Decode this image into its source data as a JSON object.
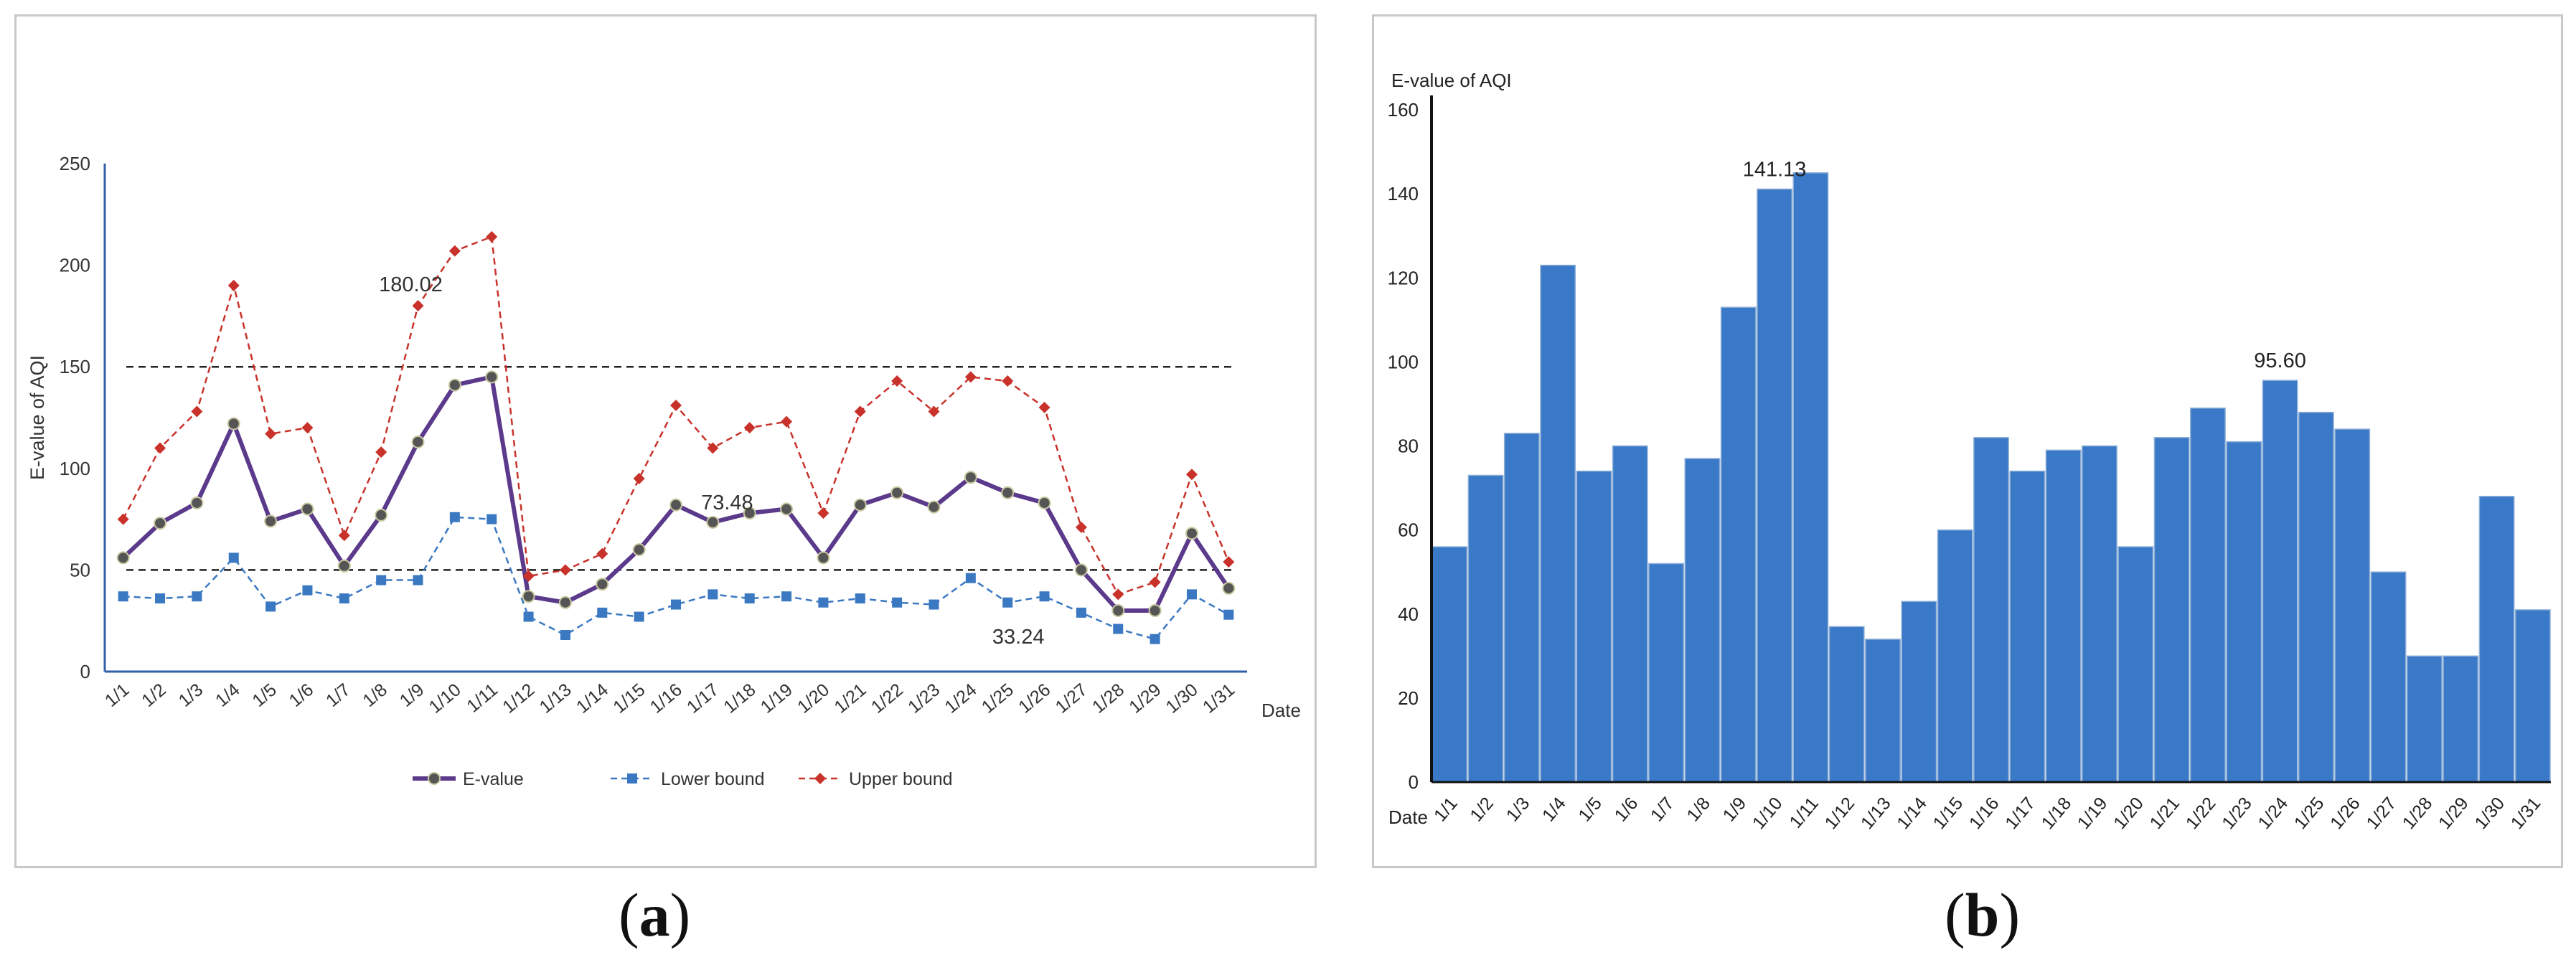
{
  "chart_data": [
    {
      "type": "line",
      "panel_label": "a",
      "title": "",
      "xlabel": "Date",
      "ylabel": "E-value of AQI",
      "ylim": [
        0,
        250
      ],
      "yticks": [
        "0",
        "50",
        "100",
        "150",
        "200",
        "250"
      ],
      "categories": [
        "1/1",
        "1/2",
        "1/3",
        "1/4",
        "1/5",
        "1/6",
        "1/7",
        "1/8",
        "1/9",
        "1/10",
        "1/11",
        "1/12",
        "1/13",
        "1/14",
        "1/15",
        "1/16",
        "1/17",
        "1/18",
        "1/19",
        "1/20",
        "1/21",
        "1/22",
        "1/23",
        "1/24",
        "1/25",
        "1/26",
        "1/27",
        "1/28",
        "1/29",
        "1/30",
        "1/31"
      ],
      "series": [
        {
          "name": "E-value",
          "color": "#5b3a8c",
          "values": [
            56,
            73,
            83,
            122,
            74,
            80,
            52,
            77,
            113,
            141,
            145,
            37,
            34,
            43,
            60,
            82,
            73.48,
            78,
            80,
            56,
            82,
            88,
            81,
            95.6,
            88,
            83,
            50,
            30,
            30,
            68,
            41
          ]
        },
        {
          "name": "Lower bound",
          "color": "#3a78c2",
          "values": [
            37,
            36,
            37,
            56,
            32,
            40,
            36,
            45,
            45,
            76,
            75,
            27,
            18,
            29,
            27,
            33,
            38,
            36,
            37,
            34,
            36,
            34,
            33,
            46,
            34,
            37,
            29,
            21,
            16,
            38,
            28
          ]
        },
        {
          "name": "Upper bound",
          "color": "#c8322a",
          "values": [
            75,
            110,
            128,
            190,
            117,
            120,
            67,
            108,
            180.02,
            207,
            214,
            47,
            50,
            58,
            95,
            131,
            110,
            120,
            123,
            78,
            128,
            143,
            128,
            145,
            143,
            130,
            71,
            38,
            44,
            97,
            54
          ]
        }
      ],
      "reference_lines": [
        150,
        50
      ],
      "annotations": [
        "180.02",
        "73.48",
        "33.24"
      ],
      "legend": {
        "position": "bottom",
        "items": [
          "E-value",
          "Lower bound",
          "Upper bound"
        ]
      }
    },
    {
      "type": "bar",
      "panel_label": "b",
      "title": "",
      "xlabel": "Date",
      "ylabel": "E-value of AQI",
      "ylim": [
        0,
        160
      ],
      "yticks": [
        "0",
        "20",
        "40",
        "60",
        "80",
        "100",
        "120",
        "140",
        "160"
      ],
      "categories": [
        "1/1",
        "1/2",
        "1/3",
        "1/4",
        "1/5",
        "1/6",
        "1/7",
        "1/8",
        "1/9",
        "1/10",
        "1/11",
        "1/12",
        "1/13",
        "1/14",
        "1/15",
        "1/16",
        "1/17",
        "1/18",
        "1/19",
        "1/20",
        "1/21",
        "1/22",
        "1/23",
        "1/24",
        "1/25",
        "1/26",
        "1/27",
        "1/28",
        "1/29",
        "1/30",
        "1/31"
      ],
      "values": [
        56,
        73,
        83,
        123,
        74,
        80,
        52,
        77,
        113,
        141.13,
        145,
        37,
        34,
        43,
        60,
        82,
        74,
        79,
        80,
        56,
        82,
        89,
        81,
        95.6,
        88,
        84,
        50,
        30,
        30,
        68,
        41
      ],
      "color": "#3a78c8",
      "annotations": [
        "141.13",
        "95.60"
      ]
    }
  ],
  "captions": {
    "a": "(a)",
    "b": "(b)"
  },
  "caption_parts": {
    "a": "a",
    "b": "b"
  }
}
